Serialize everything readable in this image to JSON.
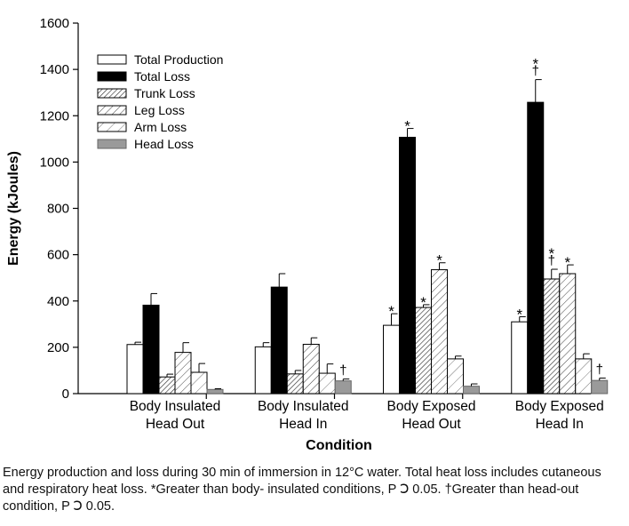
{
  "chart_data": {
    "type": "bar",
    "title": "",
    "xlabel": "Condition",
    "ylabel": "Energy (kJoules)",
    "ylim": [
      0,
      1600
    ],
    "yticks": [
      0,
      200,
      400,
      600,
      800,
      1000,
      1200,
      1400,
      1600
    ],
    "grid": false,
    "legend_position": "top-left",
    "categories": [
      {
        "line1": "Body Insulated",
        "line2": "Head Out"
      },
      {
        "line1": "Body Insulated",
        "line2": "Head In"
      },
      {
        "line1": "Body Exposed",
        "line2": "Head Out"
      },
      {
        "line1": "Body Exposed",
        "line2": "Head In"
      }
    ],
    "series": [
      {
        "name": "Total Production",
        "style": "open",
        "values": [
          212,
          202,
          295,
          310
        ],
        "errors": [
          10,
          18,
          50,
          22
        ],
        "markers": [
          "",
          "",
          "*",
          "*"
        ]
      },
      {
        "name": "Total Loss",
        "style": "solid",
        "values": [
          382,
          460,
          1107,
          1258
        ],
        "errors": [
          50,
          58,
          38,
          98
        ],
        "markers": [
          "",
          "",
          "*",
          "*\n†"
        ]
      },
      {
        "name": "Trunk Loss",
        "style": "dense-hatch",
        "values": [
          72,
          85,
          372,
          495
        ],
        "errors": [
          12,
          15,
          12,
          42
        ],
        "markers": [
          "",
          "",
          "*",
          "*\n†"
        ]
      },
      {
        "name": "Leg Loss",
        "style": "hatch",
        "values": [
          178,
          213,
          535,
          518
        ],
        "errors": [
          42,
          28,
          30,
          38
        ],
        "markers": [
          "",
          "",
          "*",
          "*"
        ]
      },
      {
        "name": "Arm Loss",
        "style": "wide-hatch",
        "values": [
          92,
          88,
          150,
          150
        ],
        "errors": [
          38,
          40,
          12,
          22
        ],
        "markers": [
          "",
          "",
          "",
          ""
        ]
      },
      {
        "name": "Head Loss",
        "style": "gray",
        "values": [
          18,
          55,
          32,
          57
        ],
        "errors": [
          3,
          8,
          10,
          10
        ],
        "markers": [
          "",
          "†",
          "",
          "†"
        ]
      }
    ]
  },
  "caption": "Energy production and loss during 30 min of immersion in 12°C water. Total heat loss includes cutaneous and respiratory heat loss. *Greater than body- insulated conditions, P Ↄ 0.05. †Greater than head-out condition, P Ↄ 0.05."
}
